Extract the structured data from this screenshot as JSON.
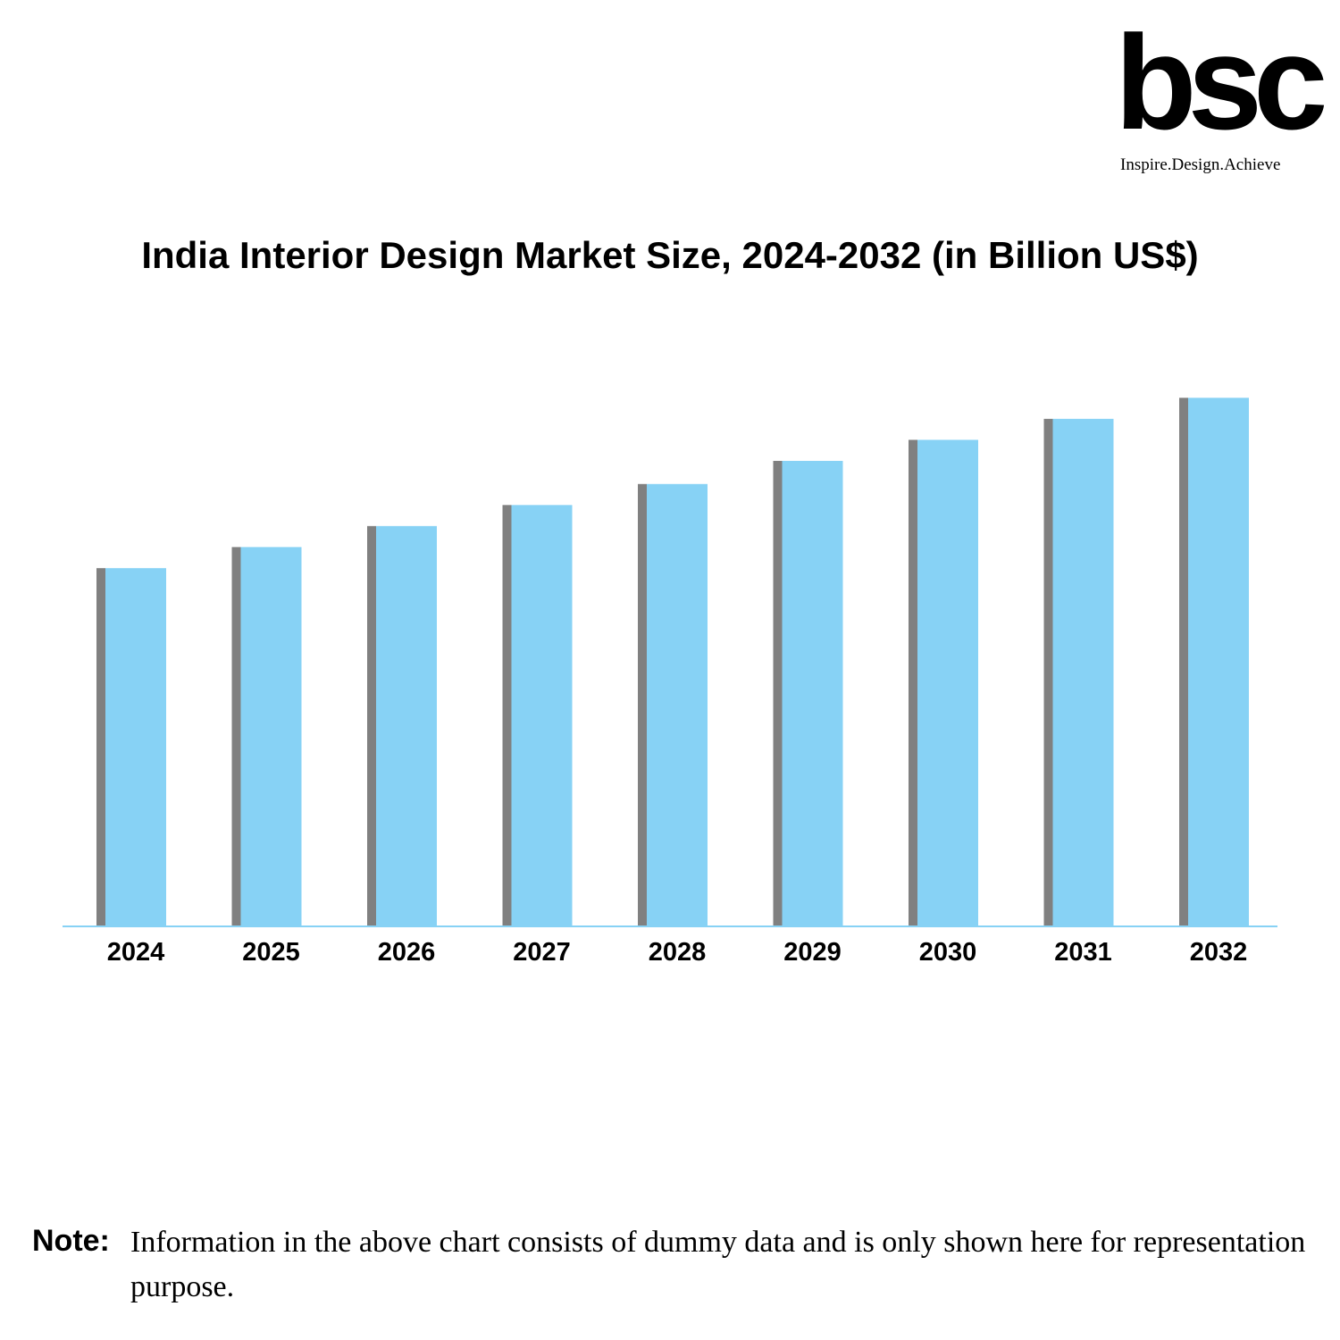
{
  "logo": {
    "mark": "bsc",
    "tagline": "Inspire.Design.Achieve"
  },
  "chart_data": {
    "type": "bar",
    "title": "India Interior Design Market Size, 2024-2032 (in Billion US$)",
    "xlabel": "",
    "ylabel": "",
    "categories": [
      "2024",
      "2025",
      "2026",
      "2027",
      "2028",
      "2029",
      "2030",
      "2031",
      "2032"
    ],
    "values": [
      34,
      36,
      38,
      40,
      42,
      44.2,
      46.2,
      48.2,
      50.2
    ],
    "ylim": [
      0,
      60
    ],
    "grid": false,
    "legend": "none",
    "colors": {
      "bar": "#87D2F5",
      "bar_side": "#808080",
      "axis": "#87D2F5"
    }
  },
  "note": {
    "label": "Note:",
    "text": "Information in the above chart consists of dummy data and is only shown here for representation purpose."
  }
}
